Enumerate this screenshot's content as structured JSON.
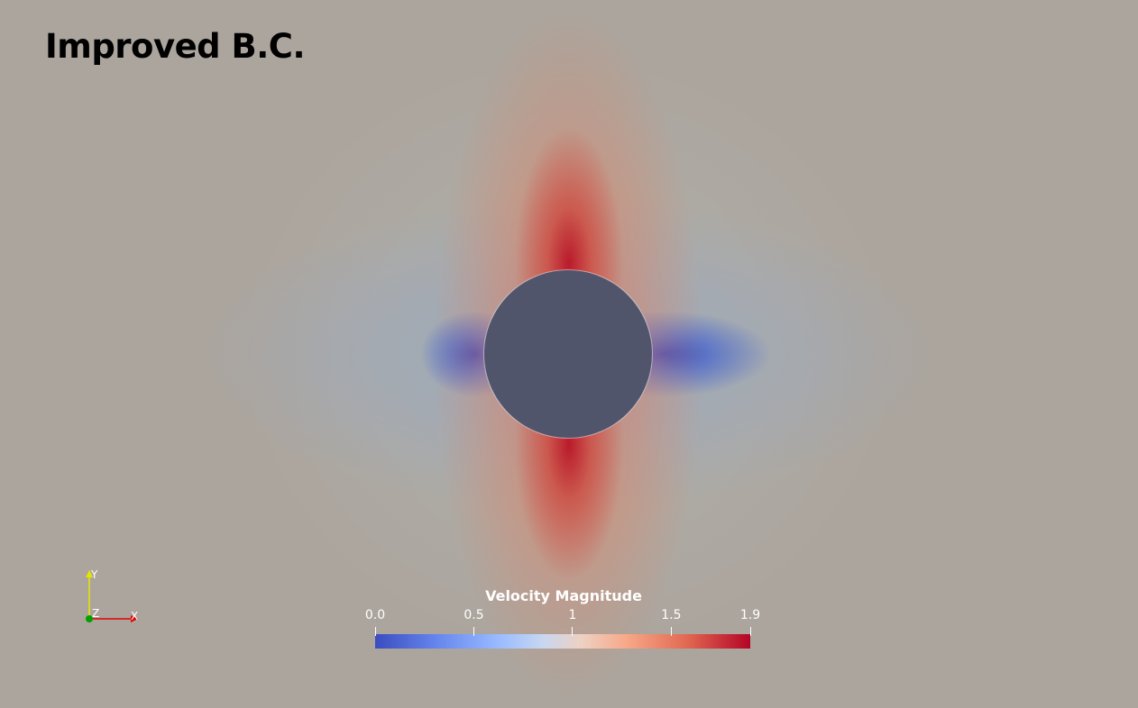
{
  "title": "Improved B.C.",
  "axes_widget": {
    "x_label": "X",
    "y_label": "Y",
    "z_label": "Z",
    "x_color": "#e00000",
    "y_color": "#e6e600",
    "z_color": "#00a000"
  },
  "colorbar": {
    "title": "Velocity Magnitude",
    "range": [
      0.0,
      1.9
    ],
    "colormap": "cool-to-warm",
    "tick_labels": [
      "0.0",
      "0.5",
      "1",
      "1.5",
      "1.9"
    ],
    "tick_values": [
      0.0,
      0.5,
      1.0,
      1.5,
      1.9
    ]
  },
  "colors": {
    "background": "#aaa69e",
    "obstacle": "#51556b",
    "high_velocity": "#b40426",
    "low_velocity": "#3b4cc0"
  }
}
